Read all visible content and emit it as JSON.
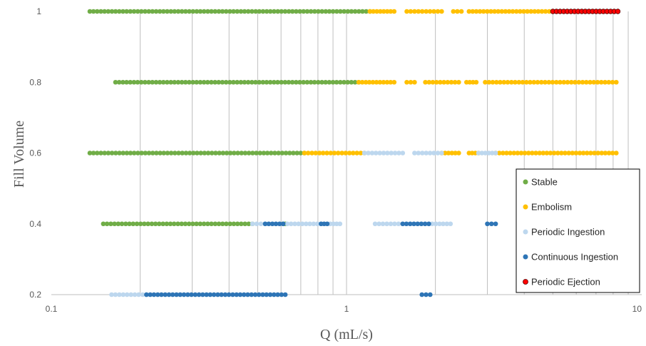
{
  "chart_data": {
    "type": "scatter",
    "xlabel": "Q (mL/s)",
    "ylabel": "Fill Volume",
    "x_scale": "log",
    "xlim": [
      0.1,
      10
    ],
    "ylim": [
      0.2,
      1
    ],
    "x_ticks": [
      "0.1",
      "1",
      "10"
    ],
    "y_ticks": [
      "0.2",
      "0.4",
      "0.6",
      "0.8",
      "1"
    ],
    "grid": "vertical log minor gridlines",
    "legend_position": "bottom-right",
    "series": [
      {
        "name": "Stable",
        "color": "#70AD47",
        "segments": [
          {
            "y": 1,
            "x_start": 0.135,
            "x_end": 1.2
          },
          {
            "y": 0.8,
            "x_start": 0.165,
            "x_end": 1.1
          },
          {
            "y": 0.6,
            "x_start": 0.135,
            "x_end": 0.72
          },
          {
            "y": 0.4,
            "x_start": 0.15,
            "x_end": 0.48
          },
          {
            "y": 0.4,
            "x_start": 0.61,
            "x_end": 0.62
          }
        ]
      },
      {
        "name": "Embolism",
        "color": "#FFC000",
        "segments": [
          {
            "y": 1,
            "x_start": 1.2,
            "x_end": 1.45
          },
          {
            "y": 1,
            "x_start": 1.6,
            "x_end": 2.1
          },
          {
            "y": 1,
            "x_start": 2.3,
            "x_end": 2.45
          },
          {
            "y": 1,
            "x_start": 2.6,
            "x_end": 5.0
          },
          {
            "y": 0.8,
            "x_start": 1.1,
            "x_end": 1.45
          },
          {
            "y": 0.8,
            "x_start": 1.6,
            "x_end": 1.7
          },
          {
            "y": 0.8,
            "x_start": 1.85,
            "x_end": 2.4
          },
          {
            "y": 0.8,
            "x_start": 2.55,
            "x_end": 2.75
          },
          {
            "y": 0.8,
            "x_start": 2.95,
            "x_end": 8.2
          },
          {
            "y": 0.6,
            "x_start": 0.72,
            "x_end": 1.15
          },
          {
            "y": 0.6,
            "x_start": 2.1,
            "x_end": 2.4
          },
          {
            "y": 0.6,
            "x_start": 2.6,
            "x_end": 2.8
          },
          {
            "y": 0.6,
            "x_start": 3.2,
            "x_end": 8.2
          }
        ]
      },
      {
        "name": "Periodic Ingestion",
        "color": "#BDD7EE",
        "segments": [
          {
            "y": 0.6,
            "x_start": 1.15,
            "x_end": 1.55
          },
          {
            "y": 0.6,
            "x_start": 1.7,
            "x_end": 2.1
          },
          {
            "y": 0.6,
            "x_start": 2.8,
            "x_end": 3.2
          },
          {
            "y": 0.4,
            "x_start": 0.48,
            "x_end": 0.53
          },
          {
            "y": 0.4,
            "x_start": 0.63,
            "x_end": 0.82
          },
          {
            "y": 0.4,
            "x_start": 0.88,
            "x_end": 0.95
          },
          {
            "y": 0.4,
            "x_start": 1.25,
            "x_end": 1.5
          },
          {
            "y": 0.4,
            "x_start": 1.95,
            "x_end": 2.25
          },
          {
            "y": 0.2,
            "x_start": 0.16,
            "x_end": 0.21
          }
        ]
      },
      {
        "name": "Continuous Ingestion",
        "color": "#2E75B6",
        "segments": [
          {
            "y": 0.4,
            "x_start": 0.53,
            "x_end": 0.61
          },
          {
            "y": 0.4,
            "x_start": 0.82,
            "x_end": 0.86
          },
          {
            "y": 0.4,
            "x_start": 1.55,
            "x_end": 1.9
          },
          {
            "y": 0.4,
            "x_start": 3.0,
            "x_end": 3.2
          },
          {
            "y": 0.2,
            "x_start": 0.21,
            "x_end": 0.62
          },
          {
            "y": 0.2,
            "x_start": 1.8,
            "x_end": 1.92
          }
        ]
      },
      {
        "name": "Periodic Ejection",
        "color": "#FF0000",
        "segments": [
          {
            "y": 1,
            "x_start": 5.0,
            "x_end": 8.3
          }
        ]
      }
    ]
  }
}
